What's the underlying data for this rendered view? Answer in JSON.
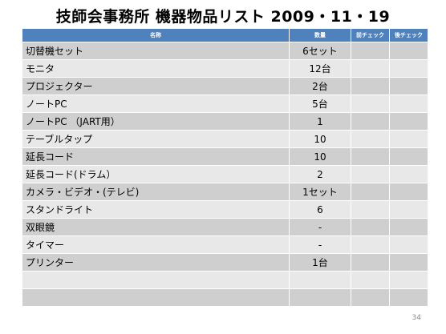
{
  "title": "技師会事務所 機器物品リスト 2009・11・19",
  "table": {
    "headers": [
      "名称",
      "数量",
      "前チェック",
      "後チェック"
    ],
    "rows": [
      {
        "name": "切替機セット",
        "qty": "6セット"
      },
      {
        "name": "モニタ",
        "qty": "12台"
      },
      {
        "name": "プロジェクター",
        "qty": "2台"
      },
      {
        "name": "ノートPC",
        "qty": "5台"
      },
      {
        "name": "ノートPC （JART用）",
        "qty": "1"
      },
      {
        "name": "テーブルタップ",
        "qty": "10"
      },
      {
        "name": "延長コード",
        "qty": "10"
      },
      {
        "name": "延長コード(ドラム）",
        "qty": "2"
      },
      {
        "name": "カメラ・ビデオ・(テレビ)",
        "qty": "1セット"
      },
      {
        "name": "スタンドライト",
        "qty": "6"
      },
      {
        "name": "双眼鏡",
        "qty": "-"
      },
      {
        "name": "タイマー",
        "qty": "-"
      },
      {
        "name": "プリンター",
        "qty": "1台"
      },
      {
        "name": "",
        "qty": ""
      },
      {
        "name": "",
        "qty": ""
      }
    ]
  },
  "page_number": "34",
  "colors": {
    "header_bg": "#4f81bd",
    "row_dark": "#cfcfcf",
    "row_light": "#e8e8e8"
  }
}
